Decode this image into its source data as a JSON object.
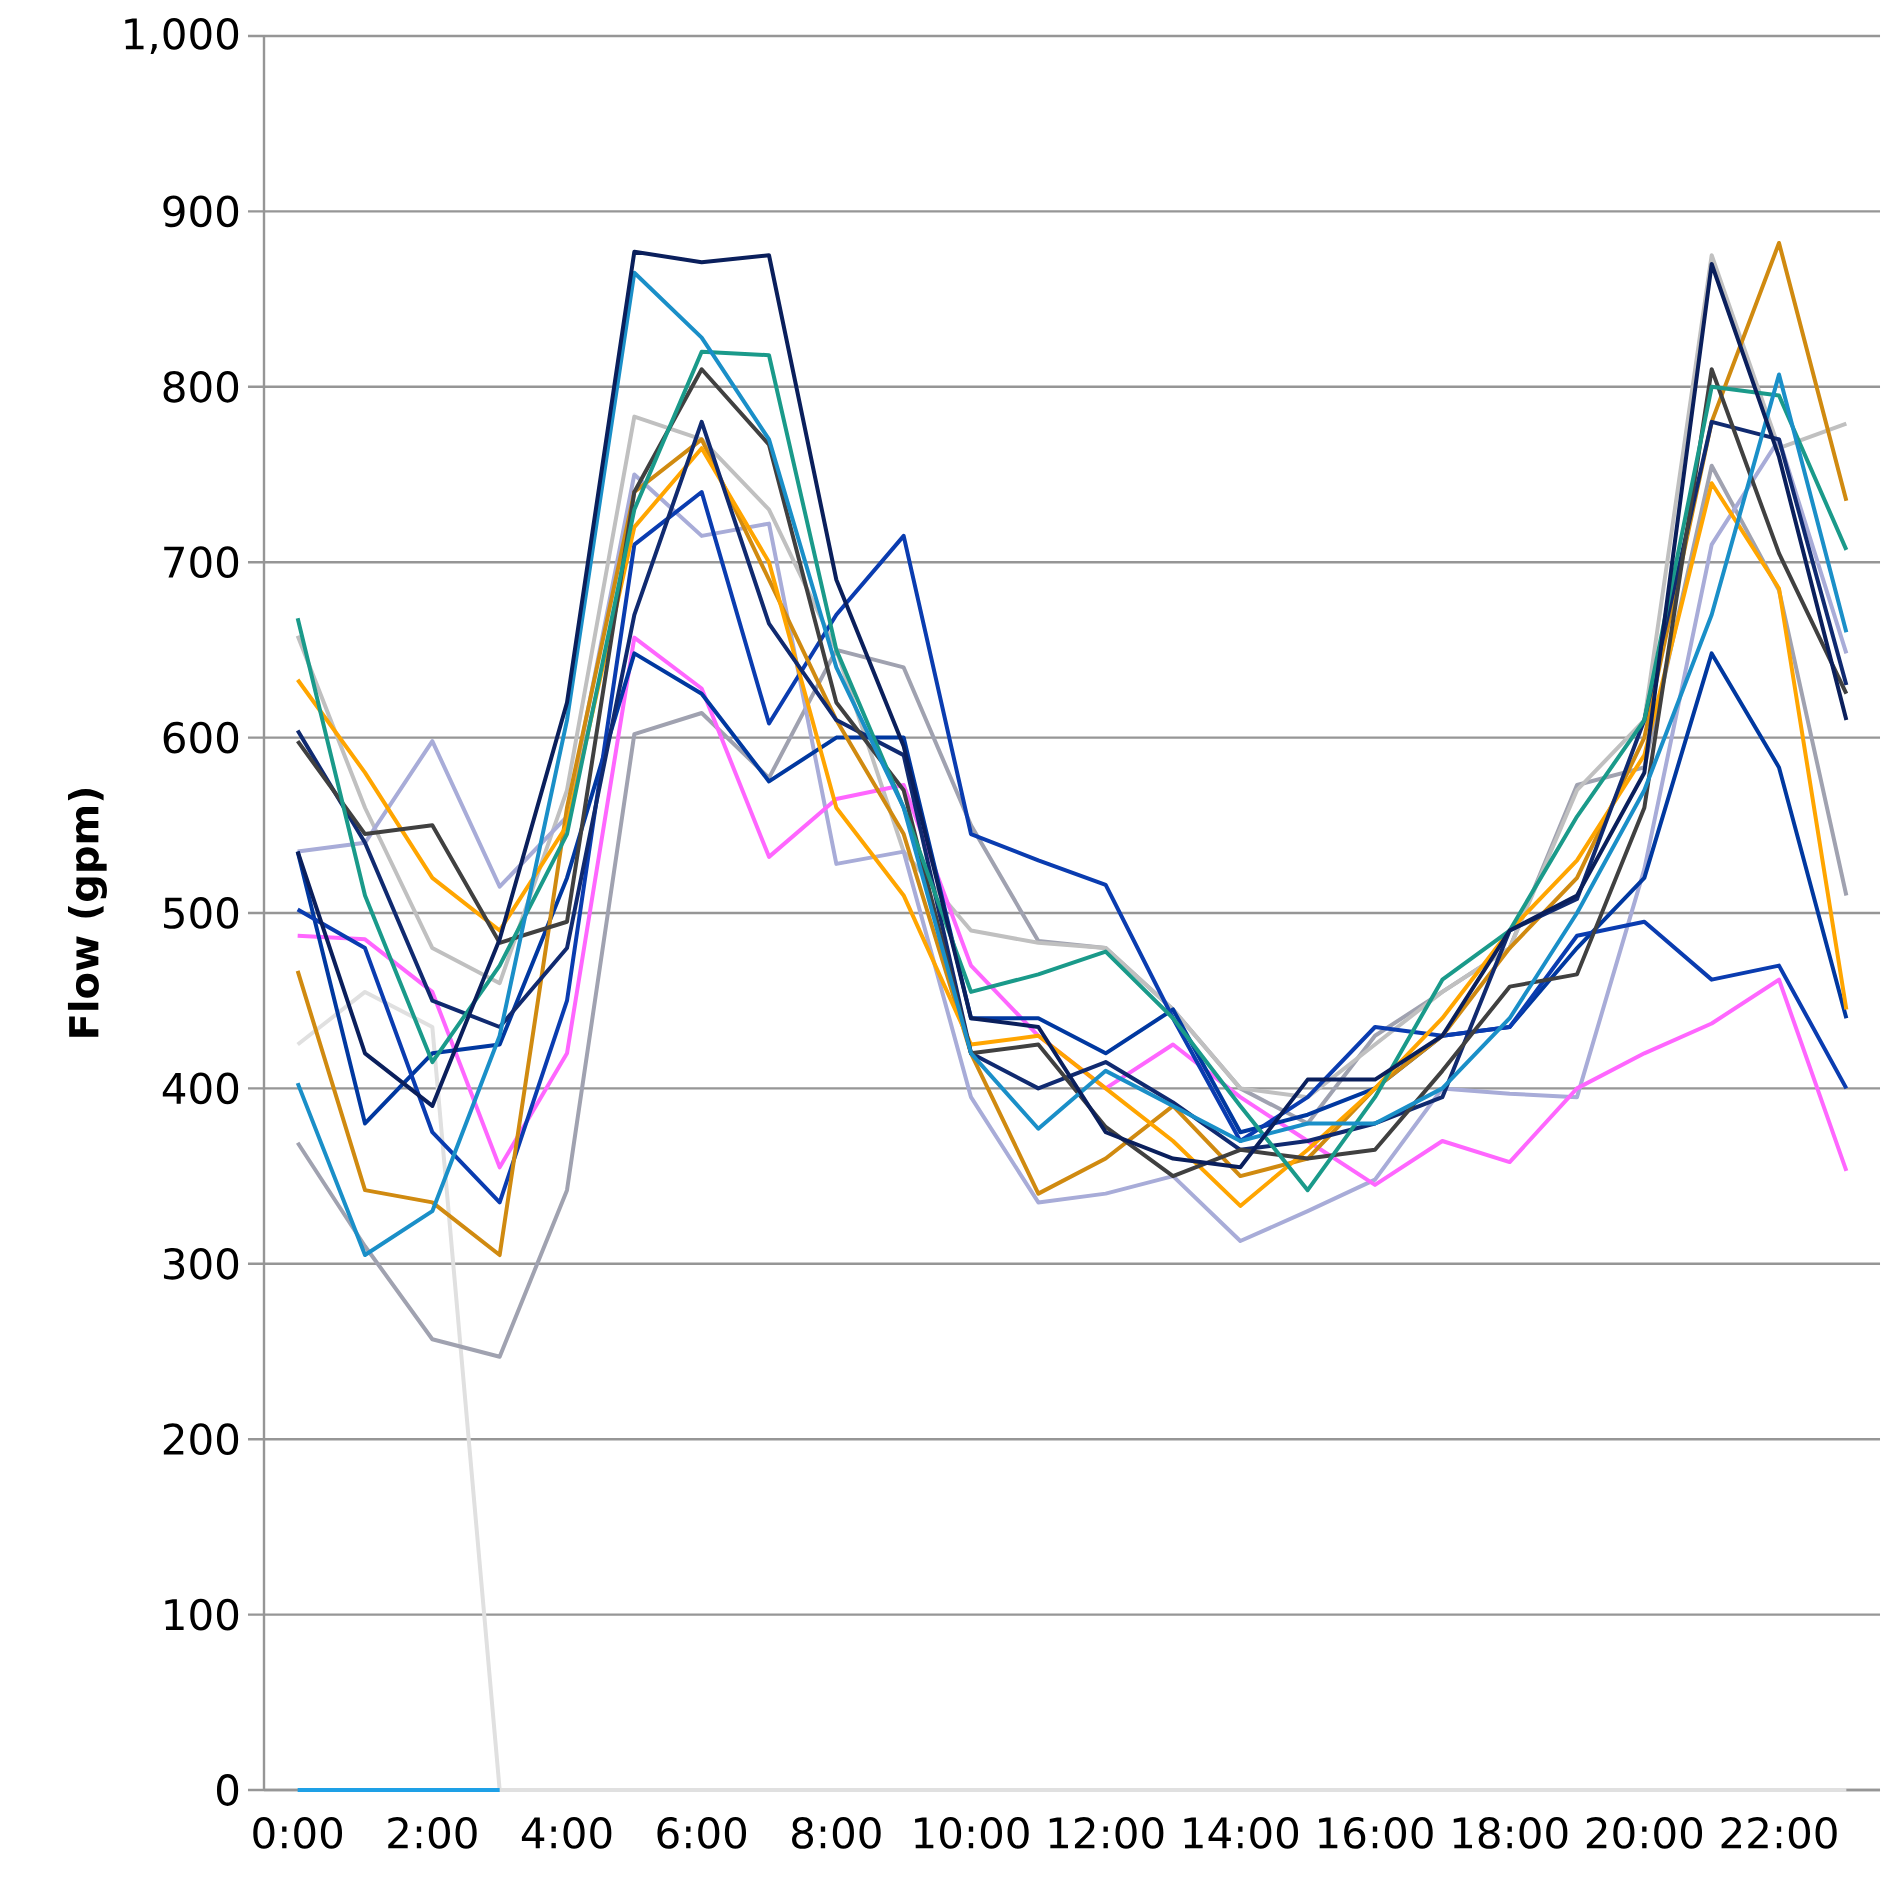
{
  "chart_data": {
    "type": "line",
    "ylabel": "Flow (gpm)",
    "categories": [
      "0:00",
      null,
      "2:00",
      null,
      "4:00",
      null,
      "6:00",
      null,
      "8:00",
      null,
      "10:00",
      null,
      "12:00",
      null,
      "14:00",
      null,
      "16:00",
      null,
      "18:00",
      null,
      "20:00",
      null,
      "22:00",
      null
    ],
    "ylim": [
      0,
      1000
    ],
    "yticks": [
      0,
      100,
      200,
      300,
      400,
      500,
      600,
      700,
      800,
      900,
      {
        "value": 1000,
        "label": "1,000"
      }
    ],
    "grid": "y",
    "series": [
      {
        "color": "#e0e0e0",
        "values": [
          425,
          455,
          435,
          0,
          0,
          0,
          0,
          0,
          0,
          0,
          0,
          0,
          0,
          0,
          0,
          0,
          0,
          0,
          0,
          0,
          0,
          0,
          0,
          0
        ]
      },
      {
        "color": "#1ea0e6",
        "values": [
          0,
          0,
          0,
          0,
          null,
          null,
          null,
          null,
          null,
          null,
          null,
          null,
          null,
          null,
          null,
          null,
          null,
          null,
          null,
          null,
          null,
          null,
          null,
          null
        ]
      },
      {
        "color": "#a0a2b0",
        "values": [
          369,
          310,
          257,
          247,
          342,
          602,
          614,
          577,
          650,
          640,
          550,
          484,
          480,
          445,
          400,
          380,
          430,
          455,
          480,
          573,
          583,
          755,
          684,
          510
        ]
      },
      {
        "color": "#c0c0c0",
        "values": [
          658,
          560,
          480,
          460,
          570,
          783,
          770,
          730,
          650,
          535,
          490,
          483,
          480,
          445,
          400,
          395,
          425,
          455,
          480,
          570,
          610,
          875,
          765,
          779
        ]
      },
      {
        "color": "#a8acd8",
        "values": [
          535,
          540,
          598,
          515,
          555,
          750,
          715,
          722,
          528,
          535,
          395,
          335,
          340,
          350,
          313,
          330,
          348,
          400,
          397,
          395,
          525,
          710,
          770,
          648
        ]
      },
      {
        "color": "#ff66ff",
        "values": [
          487,
          485,
          455,
          355,
          420,
          657,
          628,
          532,
          565,
          573,
          470,
          430,
          400,
          425,
          395,
          370,
          345,
          370,
          358,
          400,
          420,
          437,
          462,
          353
        ]
      },
      {
        "color": "#0038a0",
        "values": [
          535,
          380,
          420,
          425,
          520,
          648,
          625,
          575,
          600,
          600,
          440,
          440,
          420,
          445,
          375,
          385,
          400,
          430,
          435,
          480,
          520,
          648,
          583,
          440
        ]
      },
      {
        "color": "#0a3cb0",
        "values": [
          502,
          480,
          375,
          335,
          450,
          710,
          740,
          608,
          670,
          715,
          545,
          530,
          516,
          440,
          370,
          395,
          435,
          430,
          435,
          487,
          495,
          462,
          470,
          400
        ]
      },
      {
        "color": "#d08a10",
        "values": [
          467,
          342,
          335,
          305,
          560,
          740,
          770,
          690,
          610,
          545,
          420,
          340,
          360,
          390,
          350,
          360,
          400,
          430,
          480,
          520,
          600,
          780,
          882,
          735
        ]
      },
      {
        "color": "#ffa500",
        "values": [
          633,
          580,
          520,
          490,
          550,
          720,
          765,
          700,
          560,
          510,
          425,
          430,
          400,
          370,
          333,
          365,
          400,
          440,
          490,
          530,
          590,
          745,
          685,
          445
        ]
      },
      {
        "color": "#102a70",
        "values": [
          604,
          540,
          450,
          435,
          480,
          670,
          780,
          665,
          610,
          590,
          420,
          400,
          415,
          392,
          365,
          370,
          380,
          395,
          490,
          508,
          610,
          780,
          770,
          630
        ]
      },
      {
        "color": "#404040",
        "values": [
          598,
          545,
          550,
          483,
          495,
          740,
          810,
          767,
          620,
          570,
          420,
          425,
          378,
          350,
          365,
          360,
          365,
          410,
          458,
          465,
          560,
          810,
          705,
          625
        ]
      },
      {
        "color": "#1a9a8a",
        "values": [
          668,
          510,
          415,
          470,
          545,
          730,
          820,
          818,
          650,
          560,
          455,
          465,
          478,
          440,
          390,
          342,
          395,
          462,
          490,
          555,
          610,
          800,
          795,
          707
        ]
      },
      {
        "color": "#1a8fc8",
        "values": [
          403,
          305,
          330,
          430,
          610,
          865,
          828,
          770,
          640,
          560,
          420,
          377,
          410,
          390,
          370,
          380,
          380,
          400,
          440,
          500,
          570,
          670,
          807,
          660
        ]
      },
      {
        "color": "#0a1f5c",
        "values": [
          535,
          420,
          390,
          485,
          620,
          877,
          871,
          875,
          690,
          595,
          440,
          435,
          375,
          360,
          355,
          405,
          405,
          430,
          490,
          510,
          580,
          870,
          760,
          610
        ]
      }
    ]
  }
}
